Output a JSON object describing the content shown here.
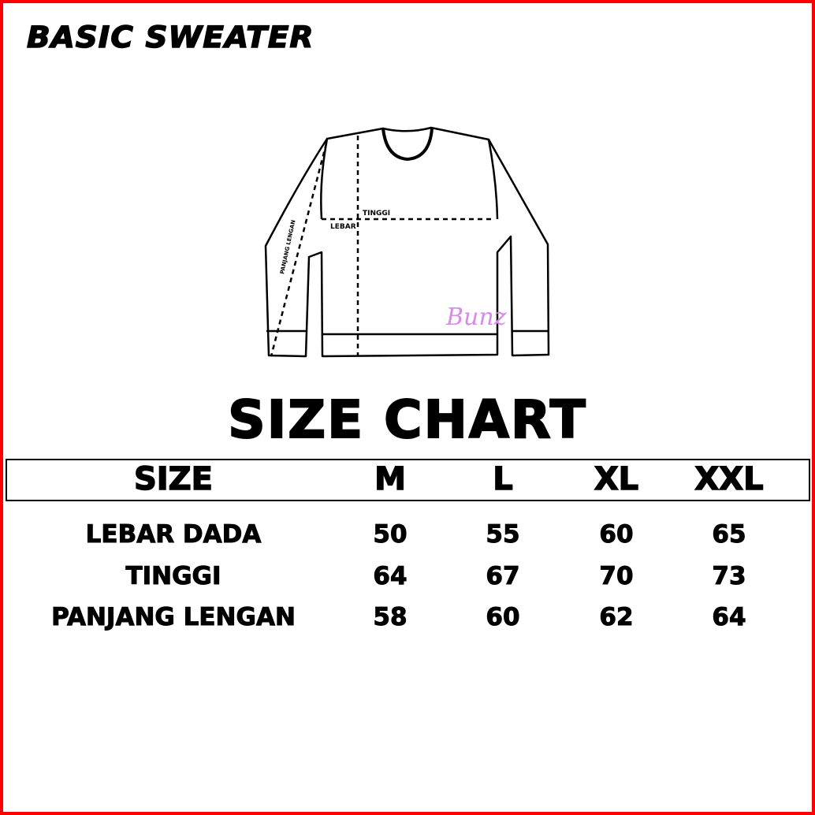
{
  "title": "BASIC SWEATER",
  "diagram": {
    "labels": {
      "height": "TINGGI",
      "width": "LEBAR",
      "sleeve": "PANJANG LENGAN"
    },
    "logo": "Bunz",
    "logo_color": "#d68be8"
  },
  "chart_title": "SIZE CHART",
  "table": {
    "headers": [
      "SIZE",
      "M",
      "L",
      "XL",
      "XXL"
    ],
    "rows": [
      {
        "label": "LEBAR DADA",
        "values": [
          "50",
          "55",
          "60",
          "65"
        ]
      },
      {
        "label": "TINGGI",
        "values": [
          "64",
          "67",
          "70",
          "73"
        ]
      },
      {
        "label": "PANJANG LENGAN",
        "values": [
          "58",
          "60",
          "62",
          "64"
        ]
      }
    ]
  },
  "colors": {
    "border": "#ff0000",
    "text": "#000000"
  }
}
